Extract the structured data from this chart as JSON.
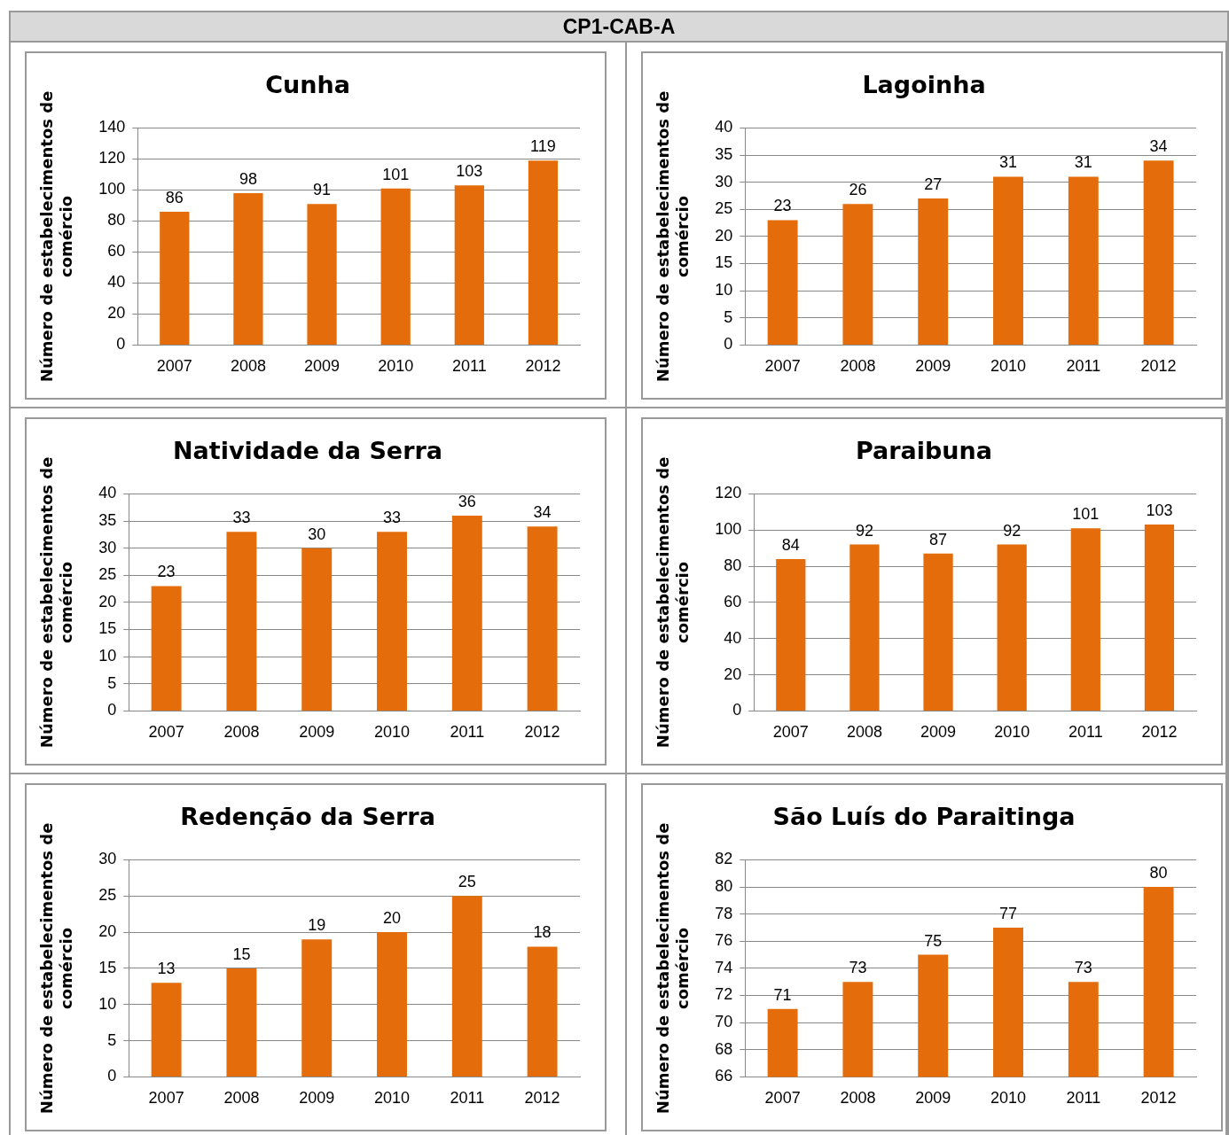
{
  "chart_data": [
    {
      "type": "other",
      "title": "CP1-CAB-A"
    },
    {
      "type": "bar",
      "title": "Cunha",
      "ylabel": "Número de estabelecimentos de comércio",
      "categories": [
        "2007",
        "2008",
        "2009",
        "2010",
        "2011",
        "2012"
      ],
      "values": [
        86,
        98,
        91,
        101,
        103,
        119
      ],
      "color": "#e46c0a",
      "ylim": [
        0,
        140
      ],
      "yticks": [
        0,
        20,
        40,
        60,
        80,
        100,
        120,
        140
      ],
      "grid": "y",
      "data_labels": true
    },
    {
      "type": "bar",
      "title": "Lagoinha",
      "ylabel": "Número de estabelecimentos de comércio",
      "categories": [
        "2007",
        "2008",
        "2009",
        "2010",
        "2011",
        "2012"
      ],
      "values": [
        23,
        26,
        27,
        31,
        31,
        34
      ],
      "color": "#e46c0a",
      "ylim": [
        0,
        40
      ],
      "yticks": [
        0,
        5,
        10,
        15,
        20,
        25,
        30,
        35,
        40
      ],
      "grid": "y",
      "data_labels": true
    },
    {
      "type": "bar",
      "title": "Natividade da Serra",
      "ylabel": "Número de estabelecimentos de comércio",
      "categories": [
        "2007",
        "2008",
        "2009",
        "2010",
        "2011",
        "2012"
      ],
      "values": [
        23,
        33,
        30,
        33,
        36,
        34
      ],
      "color": "#e46c0a",
      "ylim": [
        0,
        40
      ],
      "yticks": [
        0,
        5,
        10,
        15,
        20,
        25,
        30,
        35,
        40
      ],
      "grid": "y",
      "data_labels": true
    },
    {
      "type": "bar",
      "title": "Paraibuna",
      "ylabel": "Número de estabelecimentos de comércio",
      "categories": [
        "2007",
        "2008",
        "2009",
        "2010",
        "2011",
        "2012"
      ],
      "values": [
        84,
        92,
        87,
        92,
        101,
        103
      ],
      "color": "#e46c0a",
      "ylim": [
        0,
        120
      ],
      "yticks": [
        0,
        20,
        40,
        60,
        80,
        100,
        120
      ],
      "grid": "y",
      "data_labels": true
    },
    {
      "type": "bar",
      "title": "Redenção da Serra",
      "ylabel": "Número de estabelecimentos de comércio",
      "categories": [
        "2007",
        "2008",
        "2009",
        "2010",
        "2011",
        "2012"
      ],
      "values": [
        13,
        15,
        19,
        20,
        25,
        18
      ],
      "color": "#e46c0a",
      "ylim": [
        0,
        30
      ],
      "yticks": [
        0,
        5,
        10,
        15,
        20,
        25,
        30
      ],
      "grid": "y",
      "data_labels": true
    },
    {
      "type": "bar",
      "title": "São Luís do Paraitinga",
      "ylabel": "Número de estabelecimentos de comércio",
      "categories": [
        "2007",
        "2008",
        "2009",
        "2010",
        "2011",
        "2012"
      ],
      "values": [
        71,
        73,
        75,
        77,
        73,
        80
      ],
      "color": "#e46c0a",
      "ylim": [
        66,
        82
      ],
      "yticks": [
        66,
        68,
        70,
        72,
        74,
        76,
        78,
        80,
        82
      ],
      "grid": "y",
      "data_labels": true
    }
  ]
}
